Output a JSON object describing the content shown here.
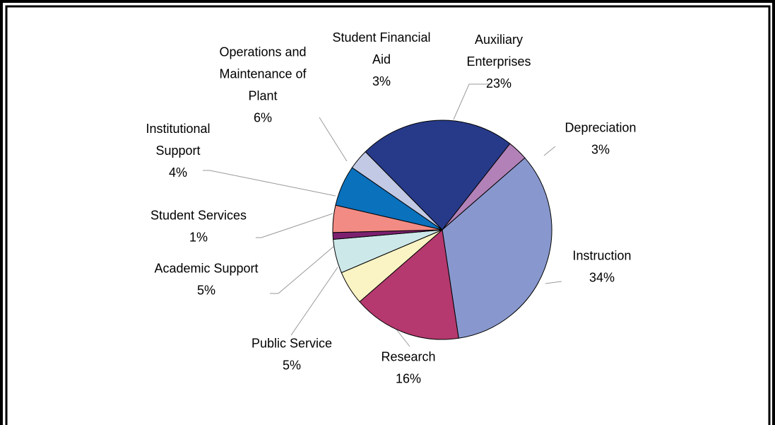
{
  "chart_data": {
    "type": "pie",
    "start_angle_deg": 134.6,
    "slices": [
      {
        "label": [
          "Auxiliary",
          "Enterprises"
        ],
        "percent_label": "23%",
        "value": 23,
        "color": "#273A8A"
      },
      {
        "label": [
          "Depreciation"
        ],
        "percent_label": "3%",
        "value": 3,
        "color": "#B281B8"
      },
      {
        "label": [
          "Instruction"
        ],
        "percent_label": "34%",
        "value": 34,
        "color": "#8898CE"
      },
      {
        "label": [
          "Research"
        ],
        "percent_label": "16%",
        "value": 16,
        "color": "#B5396E"
      },
      {
        "label": [
          "Public Service"
        ],
        "percent_label": "5%",
        "value": 5,
        "color": "#FAF3C4"
      },
      {
        "label": [
          "Academic Support"
        ],
        "percent_label": "5%",
        "value": 5,
        "color": "#CDE8E9"
      },
      {
        "label": [
          "Student Services"
        ],
        "percent_label": "1%",
        "value": 1,
        "color": "#7D2070"
      },
      {
        "label": [
          "Institutional",
          "Support"
        ],
        "percent_label": "4%",
        "value": 4,
        "color": "#F28B84"
      },
      {
        "label": [
          "Operations and",
          "Maintenance of",
          "Plant"
        ],
        "percent_label": "6%",
        "value": 6,
        "color": "#0A71BD"
      },
      {
        "label": [
          "Student Financial",
          "Aid"
        ],
        "percent_label": "3%",
        "value": 3,
        "color": "#C1C9E5"
      }
    ]
  }
}
